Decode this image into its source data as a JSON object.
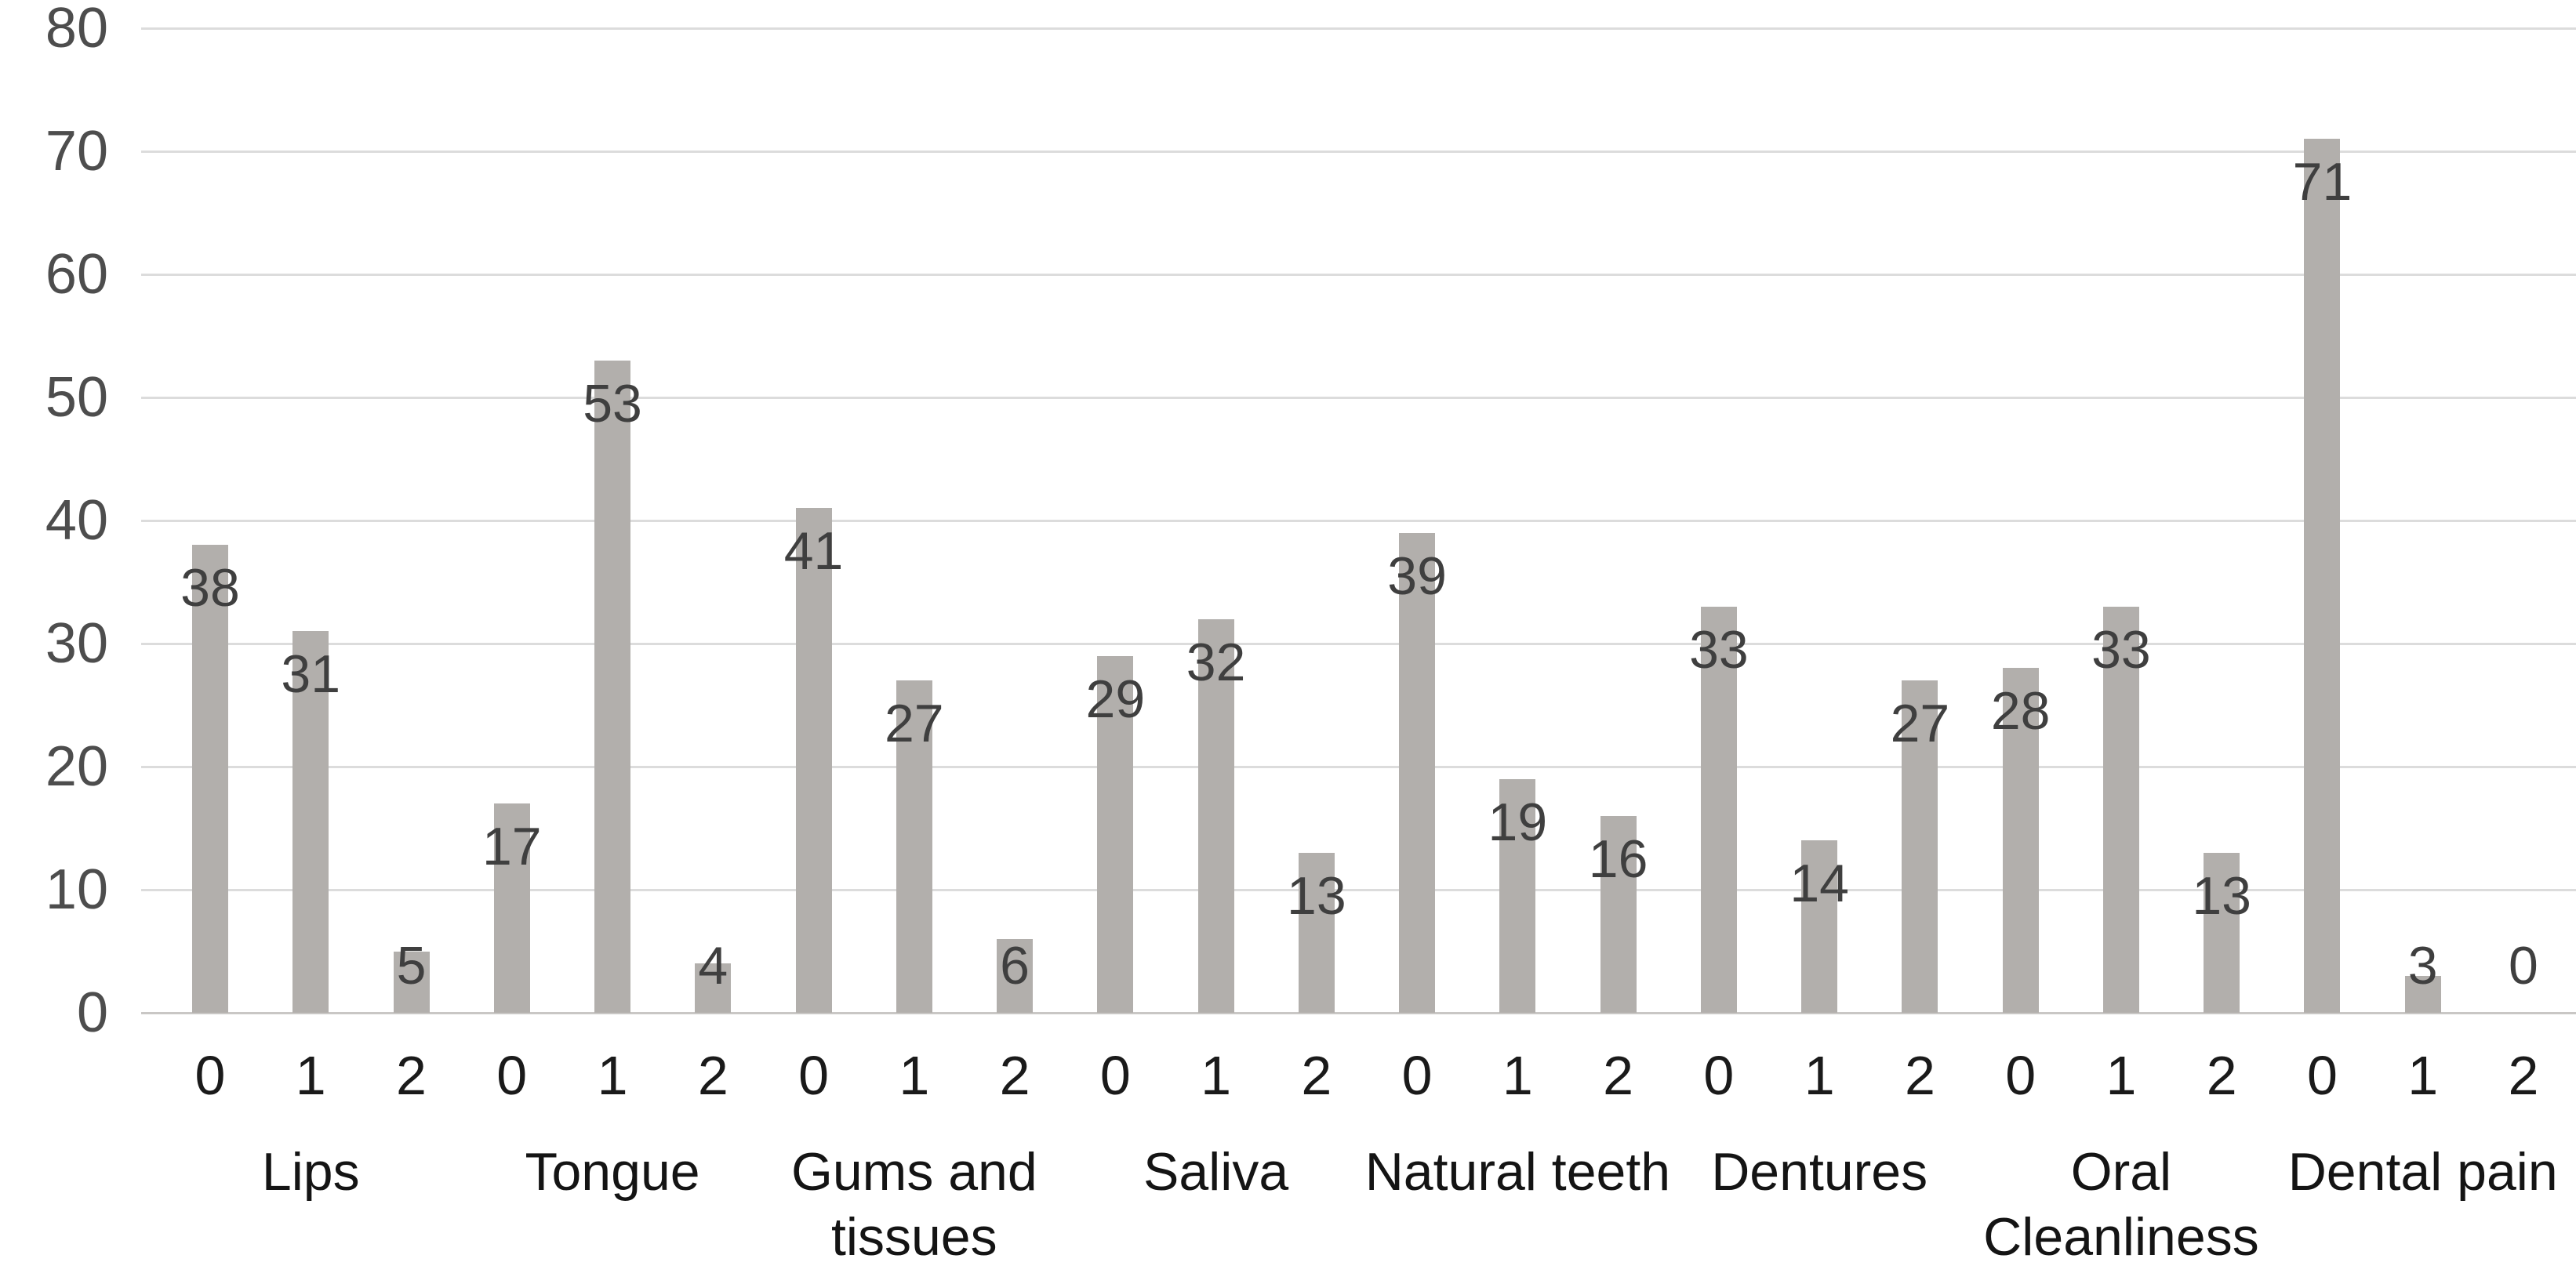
{
  "chart_data": {
    "type": "bar",
    "title": "",
    "xlabel": "",
    "ylabel": "",
    "ylim": [
      0,
      80
    ],
    "yticks": [
      0,
      10,
      20,
      30,
      40,
      50,
      60,
      70,
      80
    ],
    "grid": true,
    "legend": "none",
    "sub_categories": [
      "0",
      "1",
      "2"
    ],
    "categories": [
      "Lips",
      "Tongue",
      "Gums and tissues",
      "Saliva",
      "Natural teeth",
      "Dentures",
      "Oral Cleanliness",
      "Dental pain"
    ],
    "groups": [
      {
        "label_lines": [
          "Lips"
        ],
        "values": [
          38,
          31,
          5
        ]
      },
      {
        "label_lines": [
          "Tongue"
        ],
        "values": [
          17,
          53,
          4
        ]
      },
      {
        "label_lines": [
          "Gums and",
          "tissues"
        ],
        "values": [
          41,
          27,
          6
        ]
      },
      {
        "label_lines": [
          "Saliva"
        ],
        "values": [
          29,
          32,
          13
        ]
      },
      {
        "label_lines": [
          "Natural teeth"
        ],
        "values": [
          39,
          19,
          16
        ]
      },
      {
        "label_lines": [
          "Dentures"
        ],
        "values": [
          33,
          14,
          27
        ]
      },
      {
        "label_lines": [
          "Oral",
          "Cleanliness"
        ],
        "values": [
          28,
          33,
          13
        ]
      },
      {
        "label_lines": [
          "Dental pain"
        ],
        "values": [
          71,
          3,
          0
        ]
      }
    ],
    "colors": {
      "background": "#ffffff",
      "bar": "#b2afac",
      "gridline": "#dcdcdc",
      "axis_line": "#c9c7c5",
      "data_label": "#3f3f3f",
      "y_tick_label": "#4d4d4d",
      "x_tick_label": "#1a1a1a",
      "group_label": "#141414"
    }
  }
}
